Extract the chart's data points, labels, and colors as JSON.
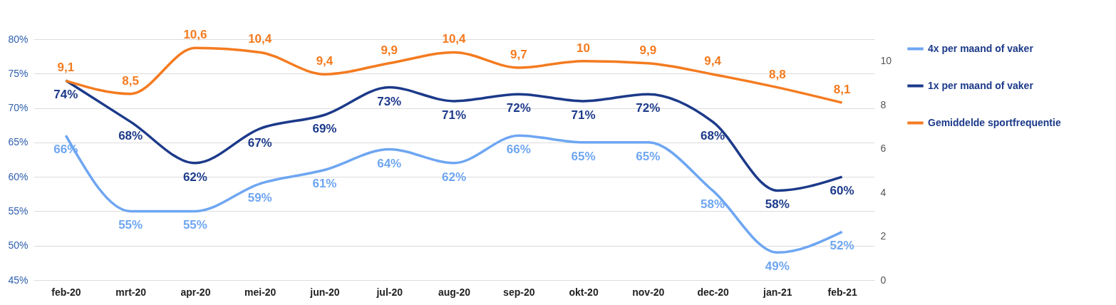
{
  "chart_data": {
    "type": "line",
    "categories": [
      "feb-20",
      "mrt-20",
      "apr-20",
      "mei-20",
      "jun-20",
      "jul-20",
      "aug-20",
      "sep-20",
      "okt-20",
      "nov-20",
      "dec-20",
      "jan-21",
      "feb-21"
    ],
    "series": [
      {
        "name": "4x per maand of vaker",
        "color": "#6ea6f2",
        "values": [
          66,
          55,
          55,
          59,
          61,
          64,
          62,
          66,
          65,
          65,
          58,
          49,
          52
        ],
        "value_labels": [
          "66%",
          "55%",
          "55%",
          "59%",
          "61%",
          "64%",
          "62%",
          "66%",
          "65%",
          "65%",
          "58%",
          "49%",
          "52%"
        ]
      },
      {
        "name": "1x per maand of vaker",
        "color": "#1c3a8a",
        "values": [
          74,
          68,
          62,
          67,
          69,
          73,
          71,
          72,
          71,
          72,
          68,
          58,
          60
        ],
        "value_labels": [
          "74%",
          "68%",
          "62%",
          "67%",
          "69%",
          "73%",
          "71%",
          "72%",
          "71%",
          "72%",
          "68%",
          "58%",
          "60%"
        ]
      },
      {
        "name": "Gemiddelde sportfrequentie",
        "color": "#f47b20",
        "axis": "y2",
        "values": [
          9.1,
          8.5,
          10.6,
          10.4,
          9.4,
          9.9,
          10.4,
          9.7,
          10,
          9.9,
          9.4,
          8.8,
          8.1
        ],
        "value_labels": [
          "9,1",
          "8,5",
          "10,6",
          "10,4",
          "9,4",
          "9,9",
          "10,4",
          "9,7",
          "10",
          "9,9",
          "9,4",
          "8,8",
          "8,1"
        ]
      }
    ],
    "ylim": [
      45,
      80
    ],
    "yticks": [
      {
        "value": 45,
        "label": "45%"
      },
      {
        "value": 50,
        "label": "50%"
      },
      {
        "value": 55,
        "label": "55%"
      },
      {
        "value": 60,
        "label": "60%"
      },
      {
        "value": 65,
        "label": "65%"
      },
      {
        "value": 70,
        "label": "70%"
      },
      {
        "value": 75,
        "label": "75%"
      },
      {
        "value": 80,
        "label": "80%"
      }
    ],
    "y2lim": [
      0,
      11
    ],
    "y2ticks": [
      0,
      2,
      4,
      6,
      8,
      10
    ],
    "grid": "y",
    "legend": "right",
    "marker": "none",
    "line_style": "solid"
  }
}
